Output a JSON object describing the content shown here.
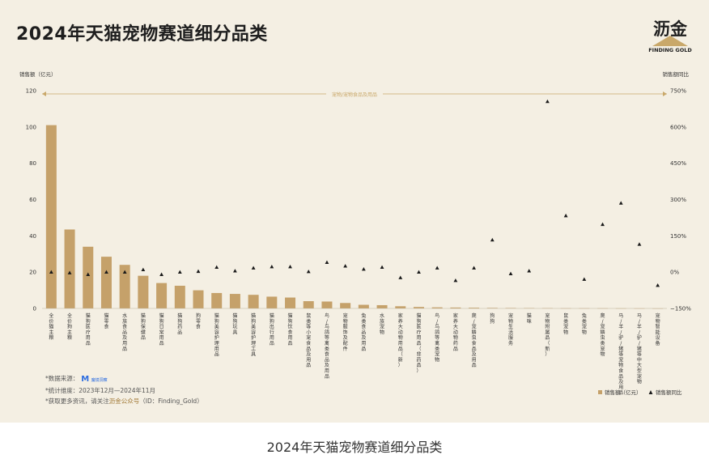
{
  "header": {
    "title": "2024年天猫宠物赛道细分品类",
    "logo_cn": "沥金",
    "logo_en": "FINDING GOLD"
  },
  "caption": "2024年天猫宠物赛道细分品类",
  "notes": {
    "source_label": "*数据来源：",
    "source_logo_text": "魔镜洞察",
    "period": "*统计维度：2023年12月—2024年11月",
    "more_prefix": "*获取更多资讯，请关注",
    "more_highlight": "沥金公众号",
    "more_suffix": "（ID：Finding_Gold）"
  },
  "colors": {
    "bar": "#c5a16a",
    "marker": "#1a1a1a",
    "accent": "#c9a86a",
    "panel": "#f4efe3"
  },
  "chart_data": {
    "type": "bar",
    "left_axis_label": "销售额（亿元）",
    "right_axis_label": "销售额同比",
    "bracket_label": "宠物/宠物食品及用品",
    "left_ticks": [
      "0",
      "20",
      "40",
      "60",
      "80",
      "100",
      "120"
    ],
    "right_ticks": [
      "−150%",
      "0%",
      "150%",
      "300%",
      "450%",
      "600%",
      "750%"
    ],
    "ylim": [
      0,
      120
    ],
    "y2lim": [
      -150,
      750
    ],
    "legend": {
      "bar": "销售额（亿元）",
      "marker": "销售额同比"
    },
    "categories": [
      "全价猫主粮",
      "全价狗主粮",
      "猫狗医疗用品",
      "猫零食",
      "水族食品及用品",
      "猫狗保健品",
      "猫狗日常用品",
      "猫狗药品",
      "狗零食",
      "猫狗美容护理用品",
      "猫狗玩具",
      "猫狗美容护理工具",
      "猫狗出行用品",
      "猫狗饮食用品",
      "鼠类等小宠食品及用品",
      "鸟/鸟鸽等禽类食品及用品",
      "宠物服饰及配件",
      "兔类食品及用品",
      "水族宠物",
      "家养大动物用品（新）",
      "猫狗医疗用品（非药品）",
      "鸟/鸟鸽等禽类宠物",
      "家养大动物药品",
      "爬/宠鳞虫食品及用品",
      "狗狗",
      "宠物生活服务",
      "猫咪",
      "宠物附属品（新）",
      "鼠类宠物",
      "兔类宠物",
      "爬/宠鳞虫类宠物",
      "马/羊/驴/猪等宠物食品及用品",
      "马/羊/驴/猪等中大型宠物",
      "宠物智能设备"
    ],
    "series": [
      {
        "name": "销售额（亿元）",
        "axis": "left",
        "values": [
          101,
          43.5,
          34,
          28.5,
          24,
          18,
          14,
          12.5,
          10,
          8.5,
          8,
          7.5,
          6.5,
          6,
          4,
          3.8,
          3,
          2,
          1.8,
          1.2,
          0.8,
          0.6,
          0.5,
          0.4,
          0.3,
          0.25,
          0.2,
          0.15,
          0.1,
          0.1,
          0.08,
          0.06,
          0.05,
          0.03
        ]
      },
      {
        "name": "销售额同比",
        "axis": "right",
        "values": [
          0,
          -3,
          -10,
          0,
          0,
          10,
          -10,
          0,
          3,
          20,
          5,
          17,
          22,
          22,
          2,
          40,
          25,
          12,
          20,
          -23,
          0,
          17,
          -35,
          17,
          133,
          -7,
          5,
          705,
          233,
          -30,
          197,
          285,
          115,
          -55
        ]
      }
    ]
  }
}
